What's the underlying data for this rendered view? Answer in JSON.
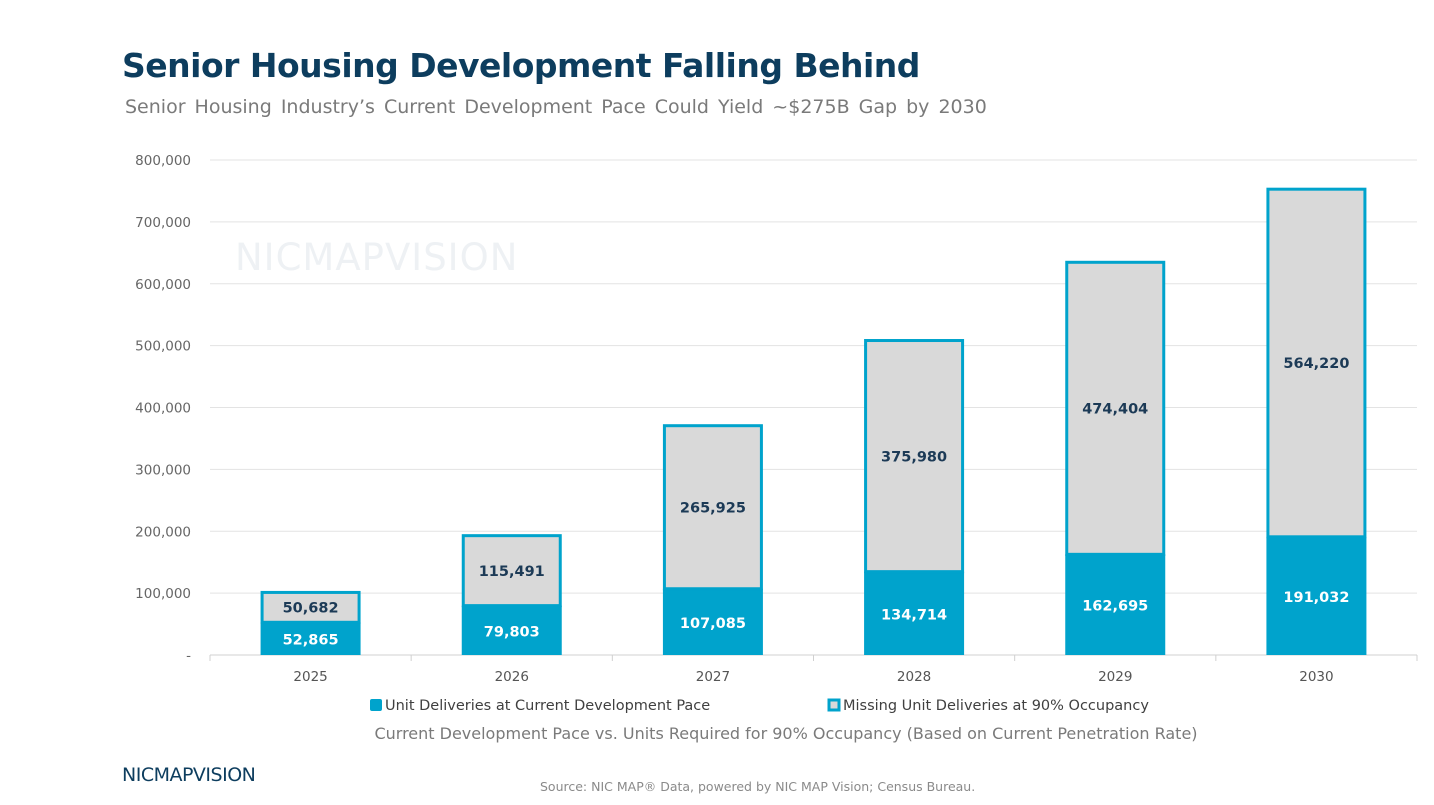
{
  "title": "Senior Housing Development Falling Behind",
  "subtitle": "Senior Housing Industry’s Current Development Pace Could Yield ~$275B Gap by 2030",
  "watermark": "NICMAPVISION",
  "logo": "NICMAPVISION",
  "source": "Source: NIC MAP® Data, powered by NIC MAP Vision; Census Bureau.",
  "chart_data": {
    "type": "bar",
    "stacked": true,
    "categories": [
      "2025",
      "2026",
      "2027",
      "2028",
      "2029",
      "2030"
    ],
    "series": [
      {
        "name": "Unit Deliveries at Current Development Pace",
        "values": [
          52865,
          79803,
          107085,
          134714,
          162695,
          191032
        ],
        "color": "#00a3cc"
      },
      {
        "name": "Missing Unit Deliveries at 90% Occupancy",
        "values": [
          50682,
          115491,
          265925,
          375980,
          474404,
          564220
        ],
        "color": "#d9d9d9"
      }
    ],
    "data_labels": [
      [
        "52,865",
        "79,803",
        "107,085",
        "134,714",
        "162,695",
        "191,032"
      ],
      [
        "50,682",
        "115,491",
        "265,925",
        "375,980",
        "474,404",
        "564,220"
      ]
    ],
    "y_ticks": [
      "-",
      "100,000",
      "200,000",
      "300,000",
      "400,000",
      "500,000",
      "600,000",
      "700,000",
      "800,000"
    ],
    "ylim": [
      0,
      800000
    ],
    "xlabel": "Current Development Pace vs. Units Required for 90% Occupancy (Based on Current Penetration Rate)",
    "grid": true,
    "legend": "bottom"
  }
}
